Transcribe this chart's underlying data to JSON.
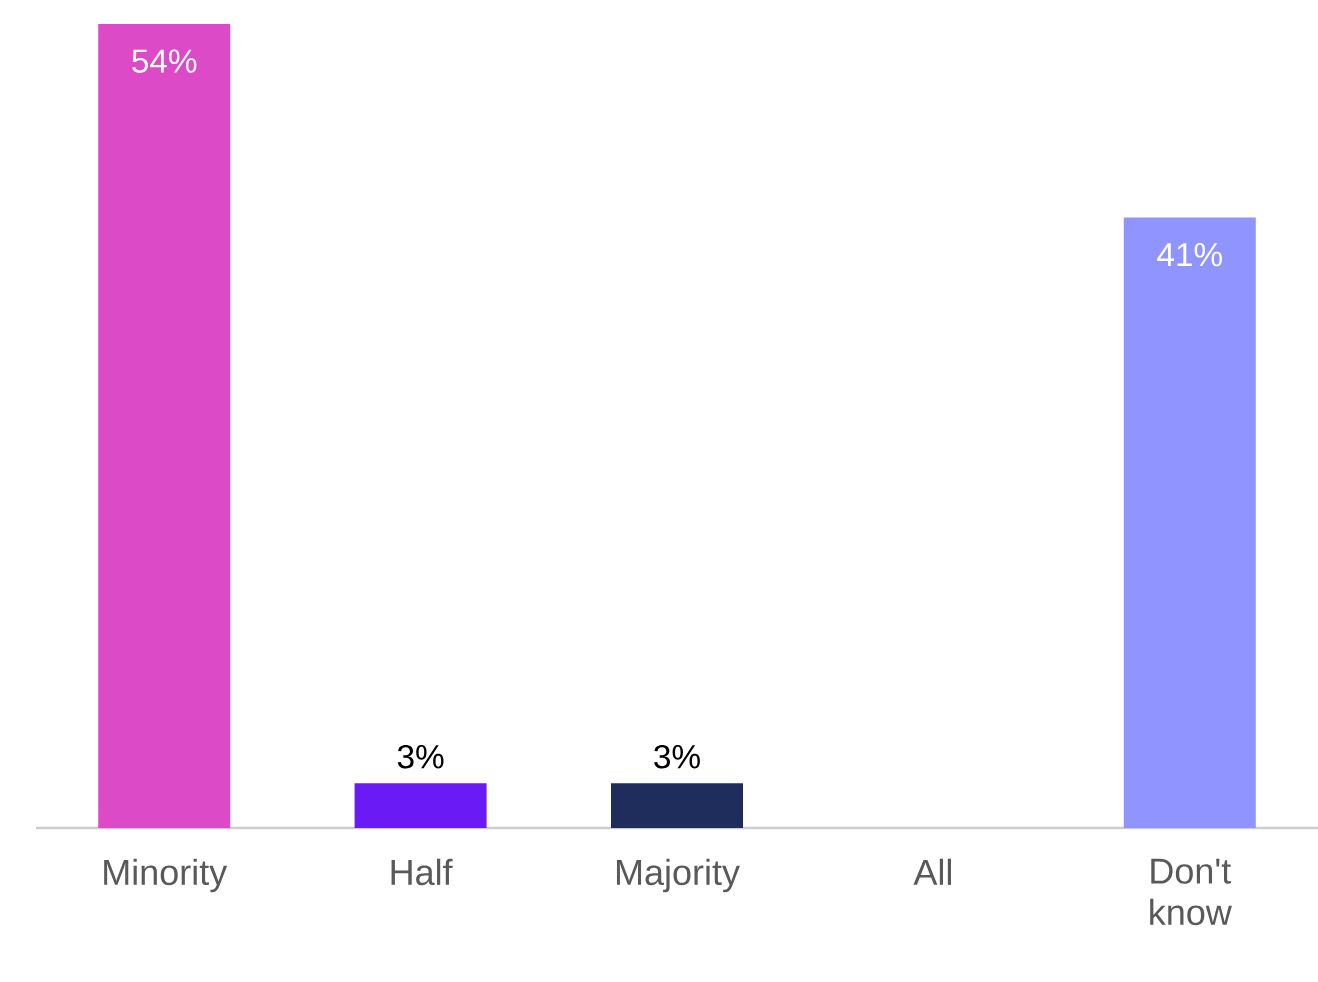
{
  "chart_data": {
    "type": "bar",
    "categories": [
      "Minority",
      "Half",
      "Majority",
      "All",
      "Don't know"
    ],
    "values": [
      54,
      3,
      3,
      0,
      41
    ],
    "colors": [
      "#dd4ac8",
      "#6a1bf5",
      "#1f2d5c",
      "#8f94ff",
      "#8f94ff"
    ],
    "value_labels": [
      "54%",
      "3%",
      "3%",
      null,
      "41%"
    ]
  }
}
